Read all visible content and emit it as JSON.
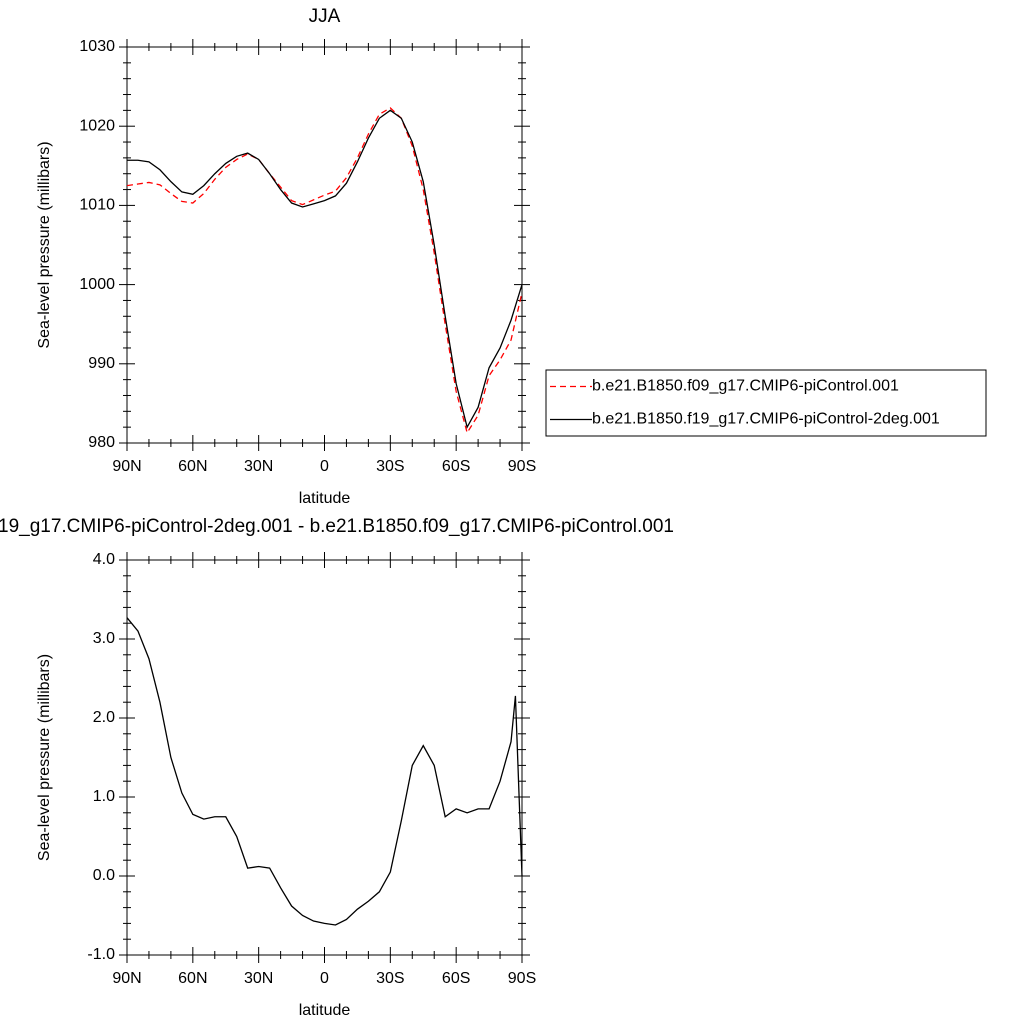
{
  "chart_data": [
    {
      "type": "line",
      "title": "JJA",
      "xlabel": "latitude",
      "ylabel": "Sea-level pressure (millibars)",
      "x": [
        90,
        85,
        80,
        75,
        70,
        65,
        60,
        55,
        50,
        45,
        40,
        35,
        30,
        25,
        20,
        15,
        10,
        5,
        0,
        -5,
        -10,
        -15,
        -20,
        -25,
        -30,
        -35,
        -40,
        -45,
        -50,
        -55,
        -60,
        -65,
        -70,
        -75,
        -80,
        -85,
        -90
      ],
      "series": [
        {
          "name": "b.e21.B1850.f09_g17.CMIP6-piControl.001",
          "color": "#ff0000",
          "line_style": "dashed",
          "values": [
            1012.5,
            1012.7,
            1012.9,
            1012.6,
            1011.5,
            1010.5,
            1010.3,
            1011.5,
            1013.3,
            1014.8,
            1015.8,
            1016.5,
            1015.8,
            1014,
            1012.3,
            1010.6,
            1010.1,
            1010.7,
            1011.3,
            1011.8,
            1013.5,
            1016,
            1019,
            1021.5,
            1022.3,
            1021,
            1017.5,
            1012,
            1004,
            995,
            986.5,
            981.3,
            983.5,
            988.5,
            990.5,
            993,
            999
          ]
        },
        {
          "name": "b.e21.B1850.f19_g17.CMIP6-piControl-2deg.001",
          "color": "#000000",
          "line_style": "solid",
          "values": [
            1015.7,
            1015.7,
            1015.5,
            1014.5,
            1013,
            1011.7,
            1011.4,
            1012.5,
            1014,
            1015.3,
            1016.2,
            1016.6,
            1015.8,
            1014,
            1012,
            1010.3,
            1009.8,
            1010.2,
            1010.6,
            1011.2,
            1012.8,
            1015.5,
            1018.5,
            1021,
            1022,
            1021,
            1018,
            1013,
            1005,
            996,
            987.5,
            982,
            984.5,
            989.5,
            992,
            995.5,
            1000
          ]
        }
      ],
      "xlim": [
        90,
        -90
      ],
      "xticks": [
        {
          "value": 90,
          "label": "90N"
        },
        {
          "value": 60,
          "label": "60N"
        },
        {
          "value": 30,
          "label": "30N"
        },
        0,
        {
          "value": -30,
          "label": "30S"
        },
        {
          "value": -60,
          "label": "60S"
        },
        {
          "value": -90,
          "label": "90S"
        }
      ],
      "ylim": [
        980,
        1030
      ],
      "yticks": [
        980,
        990,
        1000,
        1010,
        1020,
        1030
      ],
      "legend": "right"
    },
    {
      "type": "line",
      "title": "19_g17.CMIP6-piControl-2deg.001 - b.e21.B1850.f09_g17.CMIP6-piControl.001",
      "xlabel": "latitude",
      "ylabel": "Sea-level pressure (millibars)",
      "x": [
        90,
        85,
        80,
        75,
        70,
        65,
        60,
        55,
        50,
        45,
        40,
        35,
        30,
        25,
        20,
        15,
        10,
        5,
        0,
        -5,
        -10,
        -15,
        -20,
        -25,
        -30,
        -35,
        -40,
        -45,
        -50,
        -55,
        -60,
        -65,
        -70,
        -75,
        -80,
        -85,
        -87,
        -90
      ],
      "values": [
        3.27,
        3.1,
        2.75,
        2.2,
        1.5,
        1.05,
        0.78,
        0.72,
        0.75,
        0.75,
        0.5,
        0.1,
        0.12,
        0.1,
        -0.15,
        -0.38,
        -0.5,
        -0.57,
        -0.6,
        -0.62,
        -0.55,
        -0.42,
        -0.32,
        -0.2,
        0.05,
        0.7,
        1.4,
        1.65,
        1.4,
        0.75,
        0.85,
        0.8,
        0.85,
        0.85,
        1.2,
        1.7,
        2.28,
        0.0
      ],
      "color": "#000000",
      "xlim": [
        90,
        -90
      ],
      "xticks": [
        {
          "value": 90,
          "label": "90N"
        },
        {
          "value": 60,
          "label": "60N"
        },
        {
          "value": 30,
          "label": "30N"
        },
        0,
        {
          "value": -30,
          "label": "30S"
        },
        {
          "value": -60,
          "label": "60S"
        },
        {
          "value": -90,
          "label": "90S"
        }
      ],
      "ylim": [
        -1,
        4
      ],
      "yticks": [
        {
          "value": -1,
          "label": "-1.0"
        },
        {
          "value": 0,
          "label": "0.0"
        },
        {
          "value": 1,
          "label": "1.0"
        },
        {
          "value": 2,
          "label": "2.0"
        },
        {
          "value": 3,
          "label": "3.0"
        },
        {
          "value": 4,
          "label": "4.0"
        }
      ]
    }
  ]
}
